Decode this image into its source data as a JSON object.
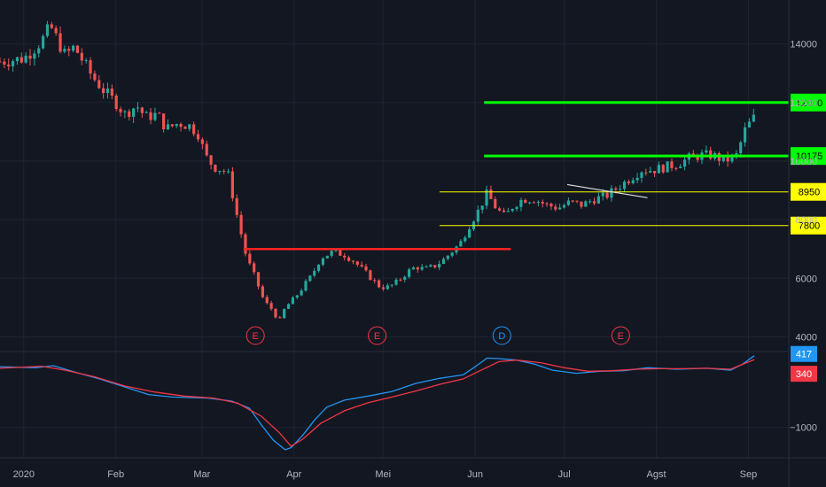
{
  "colors": {
    "background": "#131722",
    "grid": "#1f2433",
    "axis_text": "#b2b5be",
    "up": "#26a69a",
    "down": "#ef5350",
    "green_level": "#00ff00",
    "yellow_level": "#ffff00",
    "red_level": "#ff2222",
    "macd": "#2196f3",
    "signal": "#f23645",
    "event_earnings": "#f23645",
    "event_dividend": "#2196f3"
  },
  "chart_data": [
    {
      "type": "candlestick",
      "title": "",
      "ylim": [
        3500,
        15500
      ],
      "y_ticks": [
        4000,
        6000,
        8000,
        10000,
        12000,
        14000
      ],
      "y_tick_labels": [
        "4000",
        "6000",
        "8000",
        "10000",
        "12000",
        "14000"
      ],
      "x_ticks": [
        {
          "day": 0,
          "label": "2020"
        },
        {
          "day": 31,
          "label": "Feb"
        },
        {
          "day": 60,
          "label": "Mar"
        },
        {
          "day": 91,
          "label": "Apr"
        },
        {
          "day": 121,
          "label": "Mei"
        },
        {
          "day": 152,
          "label": "Jun"
        },
        {
          "day": 182,
          "label": "Jul"
        },
        {
          "day": 213,
          "label": "Agst"
        },
        {
          "day": 244,
          "label": "Sep"
        }
      ],
      "price_path": [
        [
          -8,
          13400
        ],
        [
          0,
          13500
        ],
        [
          6,
          14100
        ],
        [
          9,
          14600
        ],
        [
          11,
          14200
        ],
        [
          14,
          13600
        ],
        [
          17,
          13900
        ],
        [
          20,
          13400
        ],
        [
          23,
          12900
        ],
        [
          27,
          12400
        ],
        [
          31,
          12000
        ],
        [
          34,
          11600
        ],
        [
          38,
          11900
        ],
        [
          41,
          11500
        ],
        [
          45,
          11600
        ],
        [
          48,
          11100
        ],
        [
          52,
          11300
        ],
        [
          56,
          11200
        ],
        [
          59,
          10900
        ],
        [
          61,
          10200
        ],
        [
          64,
          9800
        ],
        [
          67,
          9700
        ],
        [
          69,
          9500
        ],
        [
          71,
          8500
        ],
        [
          73,
          7600
        ],
        [
          75,
          6700
        ],
        [
          78,
          6000
        ],
        [
          81,
          5200
        ],
        [
          84,
          4900
        ],
        [
          86,
          4500
        ],
        [
          88,
          5000
        ],
        [
          91,
          5300
        ],
        [
          94,
          5700
        ],
        [
          97,
          6100
        ],
        [
          100,
          6700
        ],
        [
          104,
          6900
        ],
        [
          108,
          6800
        ],
        [
          111,
          6600
        ],
        [
          114,
          6300
        ],
        [
          117,
          6000
        ],
        [
          120,
          5700
        ],
        [
          123,
          5700
        ],
        [
          126,
          5900
        ],
        [
          129,
          6200
        ],
        [
          132,
          6400
        ],
        [
          135,
          6300
        ],
        [
          138,
          6400
        ],
        [
          141,
          6600
        ],
        [
          144,
          6900
        ],
        [
          147,
          7200
        ],
        [
          150,
          7800
        ],
        [
          153,
          8300
        ],
        [
          156,
          8900
        ],
        [
          159,
          8400
        ],
        [
          162,
          8100
        ],
        [
          165,
          8500
        ],
        [
          168,
          8700
        ],
        [
          172,
          8700
        ],
        [
          176,
          8500
        ],
        [
          180,
          8400
        ],
        [
          184,
          8600
        ],
        [
          188,
          8500
        ],
        [
          192,
          8700
        ],
        [
          196,
          8800
        ],
        [
          200,
          9100
        ],
        [
          204,
          9400
        ],
        [
          208,
          9700
        ],
        [
          212,
          9700
        ],
        [
          216,
          9800
        ],
        [
          220,
          9900
        ],
        [
          224,
          10100
        ],
        [
          228,
          10200
        ],
        [
          232,
          10200
        ],
        [
          236,
          10000
        ],
        [
          240,
          10200
        ],
        [
          243,
          11100
        ],
        [
          246,
          11500
        ]
      ],
      "horizontal_levels": [
        {
          "price": 12000,
          "label": "12000",
          "kind": "green",
          "from_day": 155
        },
        {
          "price": 10175,
          "label": "10175",
          "kind": "green",
          "from_day": 155
        },
        {
          "price": 8950,
          "label": "8950",
          "kind": "yellow",
          "from_day": 140
        },
        {
          "price": 7800,
          "label": "7800",
          "kind": "yellow",
          "from_day": 140
        },
        {
          "price": 7000,
          "label": "",
          "kind": "red",
          "from_day": 74,
          "to_day": 164
        }
      ],
      "trendlines": [
        {
          "x1_day": 183,
          "y1": 9200,
          "x2_day": 210,
          "y2": 8750,
          "color": "white"
        }
      ],
      "events": [
        {
          "day": 78,
          "label": "E",
          "kind": "earnings"
        },
        {
          "day": 119,
          "label": "E",
          "kind": "earnings"
        },
        {
          "day": 161,
          "label": "D",
          "kind": "dividend"
        },
        {
          "day": 201,
          "label": "E",
          "kind": "earnings"
        }
      ]
    },
    {
      "type": "line",
      "title": "",
      "ylim": [
        -1600,
        500
      ],
      "y_ticks": [
        -1000
      ],
      "y_tick_labels": [
        "−1000"
      ],
      "series": [
        {
          "name": "",
          "color_key": "macd",
          "last_value": "417",
          "points": [
            [
              -8,
              200
            ],
            [
              4,
              180
            ],
            [
              10,
              220
            ],
            [
              18,
              80
            ],
            [
              26,
              -50
            ],
            [
              33,
              -180
            ],
            [
              42,
              -350
            ],
            [
              50,
              -400
            ],
            [
              62,
              -420
            ],
            [
              70,
              -480
            ],
            [
              76,
              -620
            ],
            [
              80,
              -950
            ],
            [
              84,
              -1250
            ],
            [
              88,
              -1440
            ],
            [
              90,
              -1400
            ],
            [
              94,
              -1150
            ],
            [
              98,
              -850
            ],
            [
              102,
              -600
            ],
            [
              108,
              -460
            ],
            [
              116,
              -380
            ],
            [
              124,
              -290
            ],
            [
              132,
              -130
            ],
            [
              140,
              -30
            ],
            [
              148,
              40
            ],
            [
              152,
              200
            ],
            [
              156,
              370
            ],
            [
              160,
              360
            ],
            [
              166,
              330
            ],
            [
              172,
              250
            ],
            [
              178,
              130
            ],
            [
              186,
              70
            ],
            [
              194,
              110
            ],
            [
              202,
              120
            ],
            [
              210,
              180
            ],
            [
              220,
              150
            ],
            [
              230,
              170
            ],
            [
              238,
              130
            ],
            [
              242,
              250
            ],
            [
              246,
              417
            ]
          ]
        },
        {
          "name": "",
          "color_key": "signal",
          "last_value": "340",
          "points": [
            [
              -8,
              170
            ],
            [
              6,
              210
            ],
            [
              14,
              130
            ],
            [
              24,
              0
            ],
            [
              34,
              -180
            ],
            [
              44,
              -300
            ],
            [
              54,
              -380
            ],
            [
              64,
              -420
            ],
            [
              72,
              -520
            ],
            [
              80,
              -780
            ],
            [
              86,
              -1100
            ],
            [
              90,
              -1370
            ],
            [
              94,
              -1230
            ],
            [
              100,
              -920
            ],
            [
              108,
              -670
            ],
            [
              116,
              -510
            ],
            [
              124,
              -400
            ],
            [
              132,
              -280
            ],
            [
              140,
              -150
            ],
            [
              148,
              -40
            ],
            [
              154,
              130
            ],
            [
              160,
              300
            ],
            [
              166,
              330
            ],
            [
              174,
              280
            ],
            [
              182,
              180
            ],
            [
              190,
              110
            ],
            [
              198,
              120
            ],
            [
              206,
              150
            ],
            [
              214,
              160
            ],
            [
              222,
              160
            ],
            [
              230,
              170
            ],
            [
              238,
              150
            ],
            [
              246,
              340
            ]
          ]
        }
      ]
    }
  ]
}
